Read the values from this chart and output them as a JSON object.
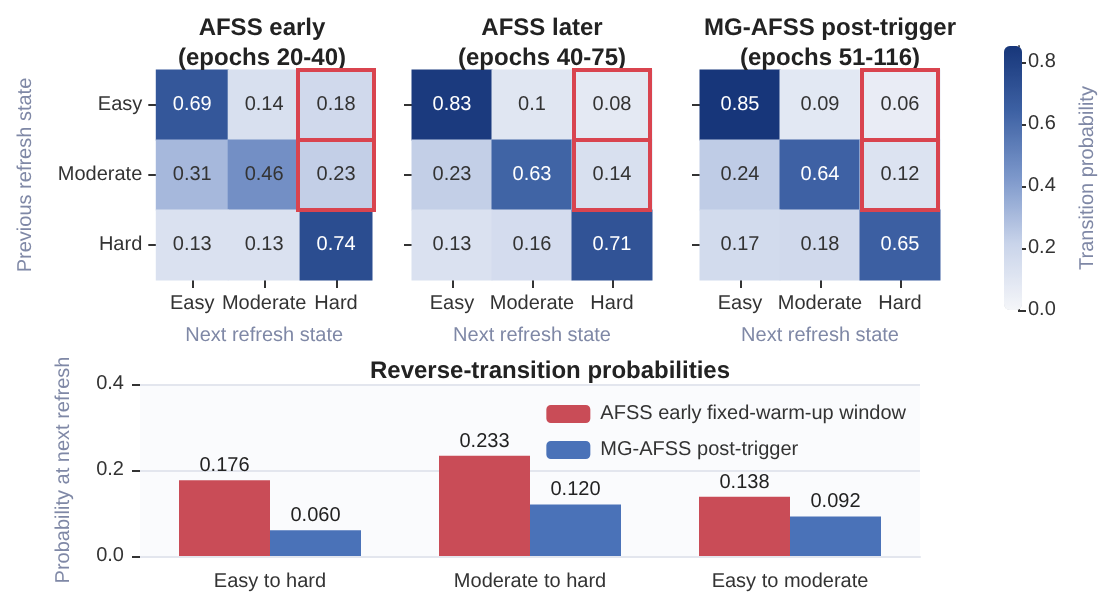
{
  "chart_data": [
    {
      "type": "heatmap",
      "title": "AFSS early (epochs 20-40)",
      "xlabel": "Next refresh state",
      "ylabel": "Previous refresh state",
      "categories": [
        "Easy",
        "Moderate",
        "Hard"
      ],
      "y_categories": [
        "Easy",
        "Moderate",
        "Hard"
      ],
      "cells": [
        [
          0.69,
          0.14,
          0.18
        ],
        [
          0.31,
          0.46,
          0.23
        ],
        [
          0.13,
          0.13,
          0.74
        ]
      ],
      "data_labels": true
    },
    {
      "type": "heatmap",
      "title": "AFSS later (epochs 40-75)",
      "xlabel": "Next refresh state",
      "categories": [
        "Easy",
        "Moderate",
        "Hard"
      ],
      "y_categories": [
        null,
        null,
        null
      ],
      "cells": [
        [
          0.83,
          0.1,
          0.08
        ],
        [
          0.23,
          0.63,
          0.14
        ],
        [
          0.13,
          0.16,
          0.71
        ]
      ],
      "data_labels": true,
      "tick_labels": "x"
    },
    {
      "type": "heatmap",
      "title": "MG-AFSS post-trigger (epochs 51-116)",
      "xlabel": "Next refresh state",
      "categories": [
        "Easy",
        "Moderate",
        "Hard"
      ],
      "y_categories": [
        null,
        null,
        null
      ],
      "cells": [
        [
          0.85,
          0.09,
          0.06
        ],
        [
          0.24,
          0.64,
          0.12
        ],
        [
          0.17,
          0.18,
          0.65
        ]
      ],
      "clim": [
        0,
        0.85
      ],
      "cticks": [
        {
          "value": 0,
          "label": "0.0"
        },
        {
          "value": 0.2,
          "label": "0.2"
        },
        {
          "value": 0.4,
          "label": "0.4"
        },
        {
          "value": 0.6,
          "label": "0.6"
        },
        {
          "value": 0.8,
          "label": "0.8"
        }
      ],
      "clabel": "Transition probability",
      "data_labels": true,
      "tick_labels": "x"
    },
    {
      "type": "bar",
      "title": "Reverse-transition probabilities",
      "ylabel": "Probability at next refresh",
      "categories": [
        "Easy to hard",
        "Moderate to hard",
        "Easy to moderate"
      ],
      "series": [
        {
          "name": "AFSS early fixed-warm-up window",
          "color": "#c94c57",
          "values": [
            0.176,
            0.233,
            0.138
          ],
          "value_labels": [
            "0.176",
            "0.233",
            "0.138"
          ]
        },
        {
          "name": "MG-AFSS post-trigger",
          "color": "#4a72b8",
          "values": [
            0.06,
            0.12,
            0.092
          ],
          "value_labels": [
            "0.060",
            "0.120",
            "0.092"
          ]
        }
      ],
      "ylim": [
        0,
        0.4
      ],
      "yticks": [
        {
          "value": 0,
          "label": "0.0"
        },
        {
          "value": 0.2,
          "label": "0.2"
        },
        {
          "value": 0.4,
          "label": "0.4"
        }
      ],
      "grid": "y",
      "legend": "top right"
    }
  ]
}
